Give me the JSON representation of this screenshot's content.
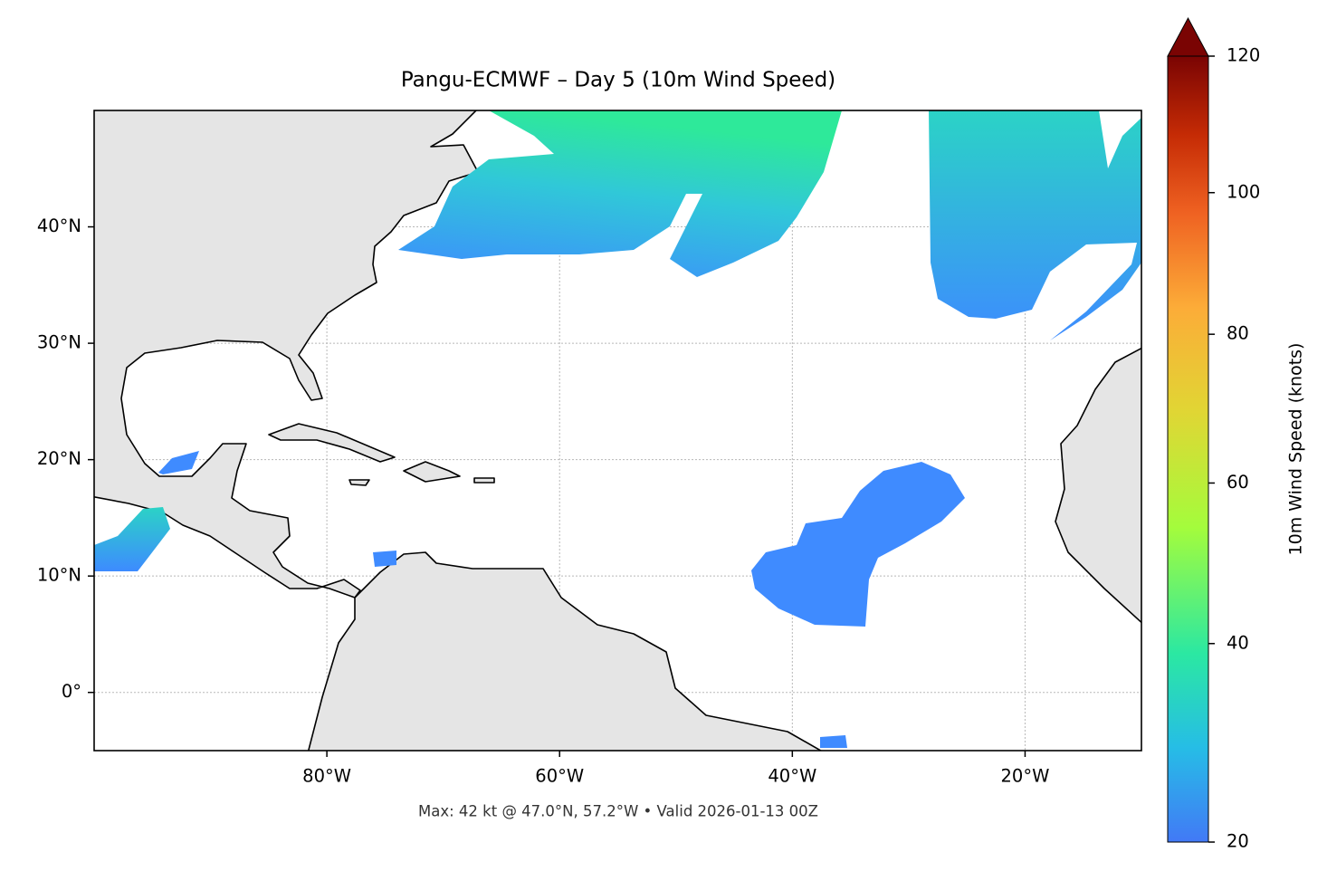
{
  "chart_data": {
    "type": "map",
    "title": "Pangu-ECMWF – Day 5 (10m Wind Speed)",
    "caption": "Max: 42 kt @ 47.0°N, 57.2°W • Valid 2026-01-13 00Z",
    "xlim": [
      -100,
      -10
    ],
    "ylim": [
      -5,
      50
    ],
    "xticks": [
      {
        "value": -80,
        "label": "80°W"
      },
      {
        "value": -60,
        "label": "60°W"
      },
      {
        "value": -40,
        "label": "40°W"
      },
      {
        "value": -20,
        "label": "20°W"
      }
    ],
    "yticks": [
      {
        "value": 0,
        "label": "0°"
      },
      {
        "value": 10,
        "label": "10°N"
      },
      {
        "value": 20,
        "label": "20°N"
      },
      {
        "value": 30,
        "label": "30°N"
      },
      {
        "value": 40,
        "label": "40°N"
      }
    ],
    "grid": true,
    "colorbar": {
      "label": "10m Wind Speed (knots)",
      "lim": [
        20,
        120
      ],
      "ticks": [
        20,
        40,
        60,
        80,
        100,
        120
      ],
      "gamma": 0.855,
      "extend": "max"
    }
  }
}
